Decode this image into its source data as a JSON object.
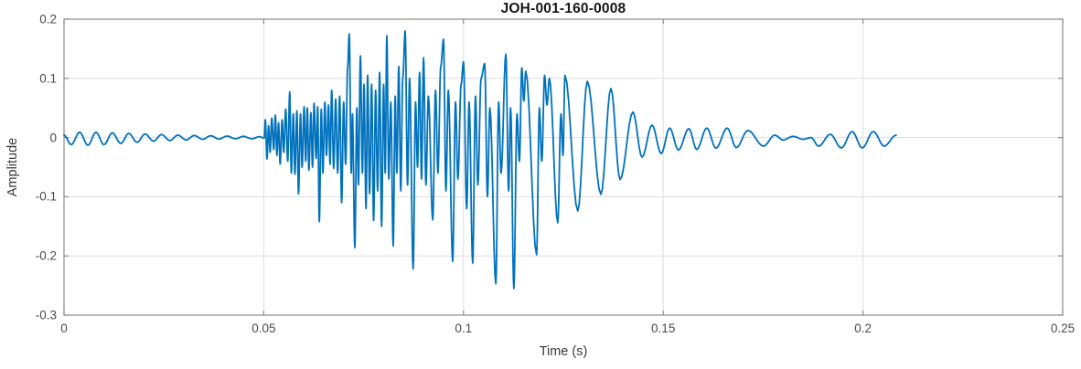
{
  "chart_data": {
    "type": "line",
    "title": "JOH-001-160-0008",
    "xlabel": "Time (s)",
    "ylabel": "Amplitude",
    "xlim": [
      0,
      0.25
    ],
    "ylim": [
      -0.3,
      0.2
    ],
    "x_ticks": [
      0,
      0.05,
      0.1,
      0.15,
      0.2,
      0.25
    ],
    "x_tick_labels": [
      "0",
      "0.05",
      "0.1",
      "0.15",
      "0.2",
      "0.25"
    ],
    "y_ticks": [
      -0.3,
      -0.2,
      -0.1,
      0,
      0.1,
      0.2
    ],
    "y_tick_labels": [
      "-0.3",
      "-0.2",
      "-0.1",
      "0",
      "0.1",
      "0.2"
    ],
    "grid": true,
    "legend": "none",
    "series": [
      {
        "name": "JOH-001-160-0008",
        "points": [
          [
            0.0,
            0.004
          ],
          [
            0.0018,
            -0.012
          ],
          [
            0.0039,
            0.009
          ],
          [
            0.006,
            -0.013
          ],
          [
            0.008,
            0.009
          ],
          [
            0.01,
            -0.012
          ],
          [
            0.0121,
            0.008
          ],
          [
            0.0142,
            -0.01
          ],
          [
            0.0162,
            0.007
          ],
          [
            0.0183,
            -0.008
          ],
          [
            0.0203,
            0.006
          ],
          [
            0.0224,
            -0.006
          ],
          [
            0.0244,
            0.005
          ],
          [
            0.0265,
            -0.005
          ],
          [
            0.0285,
            0.004
          ],
          [
            0.0306,
            -0.004
          ],
          [
            0.0326,
            0.0035
          ],
          [
            0.0347,
            -0.003
          ],
          [
            0.0367,
            0.003
          ],
          [
            0.0388,
            -0.0025
          ],
          [
            0.0408,
            0.0025
          ],
          [
            0.0429,
            -0.002
          ],
          [
            0.0449,
            0.002
          ],
          [
            0.047,
            -0.002
          ],
          [
            0.049,
            0.0015
          ],
          [
            0.0501,
            -0.001
          ],
          [
            0.0504,
            0.03
          ],
          [
            0.0508,
            -0.036
          ],
          [
            0.0512,
            0.02
          ],
          [
            0.0516,
            -0.025
          ],
          [
            0.052,
            0.033
          ],
          [
            0.0525,
            -0.02
          ],
          [
            0.0529,
            0.038
          ],
          [
            0.0533,
            -0.03
          ],
          [
            0.0537,
            0.025
          ],
          [
            0.0541,
            -0.045
          ],
          [
            0.0546,
            0.03
          ],
          [
            0.055,
            -0.025
          ],
          [
            0.0555,
            0.048
          ],
          [
            0.056,
            -0.04
          ],
          [
            0.0565,
            0.077
          ],
          [
            0.0569,
            -0.06
          ],
          [
            0.0574,
            0.04
          ],
          [
            0.0578,
            -0.062
          ],
          [
            0.0583,
            0.045
          ],
          [
            0.0587,
            -0.095
          ],
          [
            0.0592,
            0.04
          ],
          [
            0.0596,
            -0.05
          ],
          [
            0.0601,
            0.052
          ],
          [
            0.0605,
            -0.04
          ],
          [
            0.0609,
            0.05
          ],
          [
            0.0613,
            -0.055
          ],
          [
            0.0618,
            0.042
          ],
          [
            0.0622,
            -0.05
          ],
          [
            0.0626,
            0.058
          ],
          [
            0.0631,
            -0.035
          ],
          [
            0.0635,
            0.052
          ],
          [
            0.0639,
            -0.142
          ],
          [
            0.0644,
            0.048
          ],
          [
            0.0648,
            -0.06
          ],
          [
            0.0653,
            0.06
          ],
          [
            0.0657,
            -0.03
          ],
          [
            0.0662,
            0.055
          ],
          [
            0.0666,
            -0.045
          ],
          [
            0.067,
            0.08
          ],
          [
            0.0675,
            -0.052
          ],
          [
            0.068,
            0.065
          ],
          [
            0.0685,
            -0.06
          ],
          [
            0.069,
            0.07
          ],
          [
            0.0695,
            -0.11
          ],
          [
            0.07,
            0.06
          ],
          [
            0.0705,
            -0.045
          ],
          [
            0.071,
            0.12
          ],
          [
            0.0714,
            0.175
          ],
          [
            0.0719,
            -0.06
          ],
          [
            0.0722,
            0.04
          ],
          [
            0.0728,
            -0.186
          ],
          [
            0.0733,
            0.05
          ],
          [
            0.0737,
            -0.08
          ],
          [
            0.0742,
            0.138
          ],
          [
            0.0747,
            -0.06
          ],
          [
            0.0751,
            0.09
          ],
          [
            0.0756,
            -0.12
          ],
          [
            0.076,
            0.105
          ],
          [
            0.0765,
            -0.095
          ],
          [
            0.077,
            0.09
          ],
          [
            0.0775,
            -0.14
          ],
          [
            0.078,
            0.08
          ],
          [
            0.0785,
            -0.09
          ],
          [
            0.079,
            0.11
          ],
          [
            0.0795,
            -0.15
          ],
          [
            0.08,
            0.09
          ],
          [
            0.0804,
            -0.06
          ],
          [
            0.0808,
            0.172
          ],
          [
            0.0813,
            -0.07
          ],
          [
            0.0818,
            0.06
          ],
          [
            0.0824,
            -0.183
          ],
          [
            0.0829,
            0.07
          ],
          [
            0.0833,
            -0.06
          ],
          [
            0.0838,
            0.12
          ],
          [
            0.0843,
            -0.09
          ],
          [
            0.0848,
            0.1
          ],
          [
            0.0854,
            0.18
          ],
          [
            0.086,
            -0.08
          ],
          [
            0.0865,
            0.1
          ],
          [
            0.0874,
            -0.222
          ],
          [
            0.088,
            0.06
          ],
          [
            0.0885,
            -0.05
          ],
          [
            0.089,
            0.11
          ],
          [
            0.0895,
            -0.07
          ],
          [
            0.09,
            0.135
          ],
          [
            0.0906,
            -0.08
          ],
          [
            0.0912,
            0.07
          ],
          [
            0.0923,
            -0.139
          ],
          [
            0.093,
            0.08
          ],
          [
            0.0936,
            -0.06
          ],
          [
            0.0943,
            0.12
          ],
          [
            0.095,
            0.166
          ],
          [
            0.0956,
            -0.09
          ],
          [
            0.0962,
            0.08
          ],
          [
            0.0973,
            -0.209
          ],
          [
            0.098,
            0.06
          ],
          [
            0.0986,
            -0.07
          ],
          [
            0.0994,
            0.09
          ],
          [
            0.1,
            0.128
          ],
          [
            0.1008,
            -0.12
          ],
          [
            0.1014,
            0.06
          ],
          [
            0.1023,
            -0.212
          ],
          [
            0.103,
            0.07
          ],
          [
            0.1036,
            -0.08
          ],
          [
            0.1044,
            0.1
          ],
          [
            0.1053,
            0.125
          ],
          [
            0.106,
            -0.1
          ],
          [
            0.1066,
            0.05
          ],
          [
            0.1081,
            -0.247
          ],
          [
            0.1088,
            0.06
          ],
          [
            0.1094,
            -0.06
          ],
          [
            0.1106,
            0.141
          ],
          [
            0.1113,
            -0.09
          ],
          [
            0.1118,
            0.05
          ],
          [
            0.1126,
            -0.255
          ],
          [
            0.1134,
            0.04
          ],
          [
            0.114,
            -0.04
          ],
          [
            0.1146,
            0.118
          ],
          [
            0.1151,
            0.062
          ],
          [
            0.1156,
            0.112
          ],
          [
            0.1183,
            -0.198
          ],
          [
            0.119,
            0.05
          ],
          [
            0.1196,
            -0.04
          ],
          [
            0.1203,
            0.105
          ],
          [
            0.1209,
            0.055
          ],
          [
            0.1215,
            0.1
          ],
          [
            0.1236,
            -0.144
          ],
          [
            0.1244,
            0.04
          ],
          [
            0.1249,
            -0.03
          ],
          [
            0.1254,
            0.105
          ],
          [
            0.1286,
            -0.124
          ],
          [
            0.131,
            0.095
          ],
          [
            0.1344,
            -0.096
          ],
          [
            0.1369,
            0.083
          ],
          [
            0.1392,
            -0.071
          ],
          [
            0.1424,
            0.043
          ],
          [
            0.1447,
            -0.033
          ],
          [
            0.1472,
            0.021
          ],
          [
            0.1495,
            -0.027
          ],
          [
            0.1516,
            0.016
          ],
          [
            0.1538,
            -0.021
          ],
          [
            0.1564,
            0.015
          ],
          [
            0.1584,
            -0.02
          ],
          [
            0.1609,
            0.016
          ],
          [
            0.1632,
            -0.018
          ],
          [
            0.166,
            0.016
          ],
          [
            0.1683,
            -0.017
          ],
          [
            0.1712,
            0.012
          ],
          [
            0.1751,
            -0.0145
          ],
          [
            0.1779,
            0.004
          ],
          [
            0.18,
            -0.004
          ],
          [
            0.1825,
            0.002
          ],
          [
            0.185,
            -0.003
          ],
          [
            0.187,
            0.0
          ],
          [
            0.1889,
            -0.0145
          ],
          [
            0.1918,
            0.0055
          ],
          [
            0.1946,
            -0.0176
          ],
          [
            0.1973,
            0.0102
          ],
          [
            0.1998,
            -0.0176
          ],
          [
            0.2026,
            0.0102
          ],
          [
            0.2053,
            -0.0145
          ],
          [
            0.2083,
            0.004
          ]
        ]
      }
    ]
  },
  "style": {
    "line_color": "#0072BD",
    "grid_color": "#dedede",
    "axis_color": "#8c8c8c",
    "tick_label_color": "#4a4a4a",
    "label_color": "#3a3a3a",
    "title_color": "#181818",
    "background": "#ffffff"
  }
}
